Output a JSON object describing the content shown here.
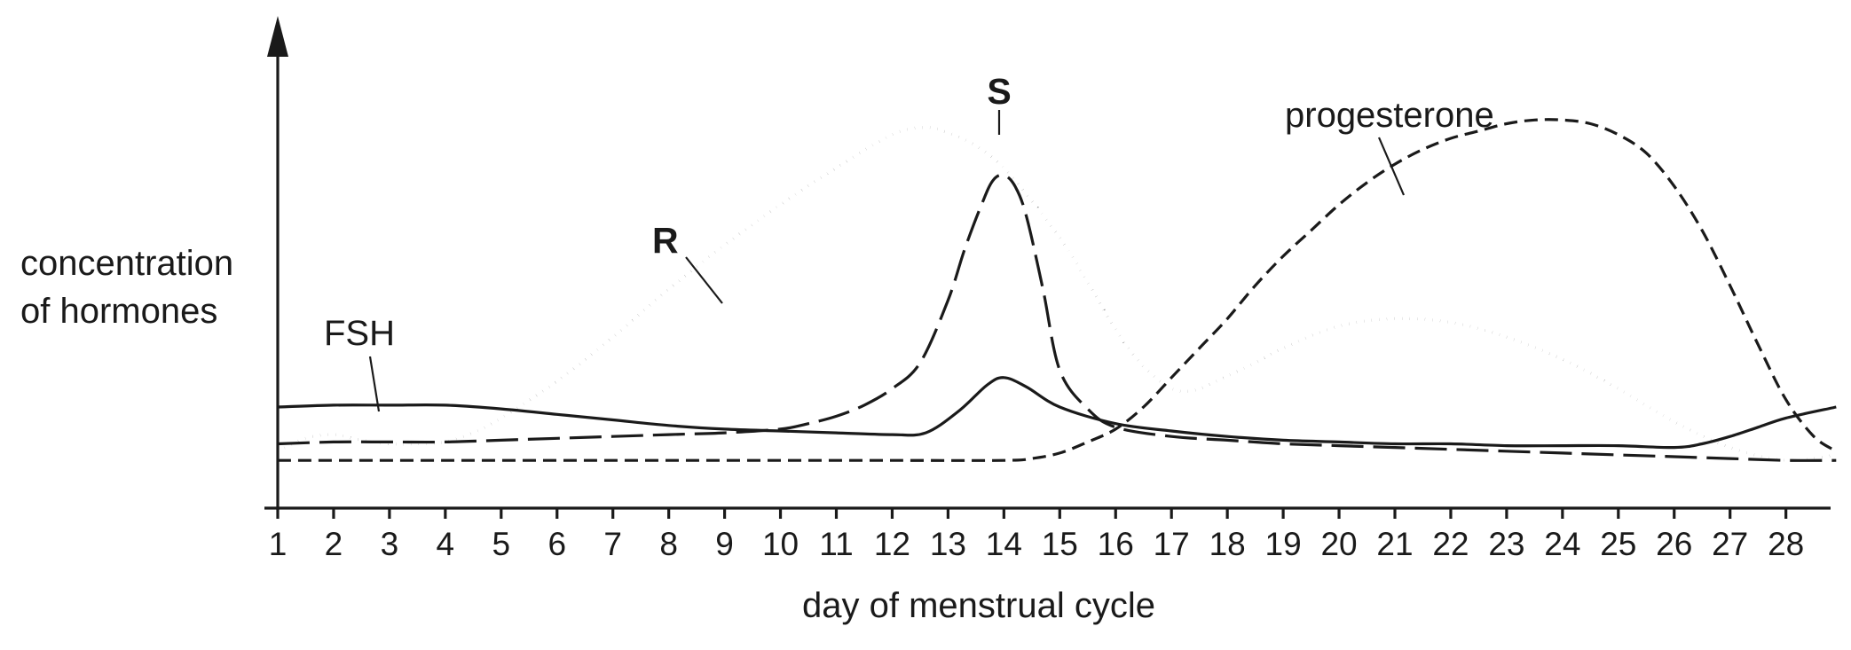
{
  "chart_data": {
    "type": "line",
    "title": "",
    "xlabel": "day of menstrual cycle",
    "ylabel_lines": [
      "concentration",
      "of hormones"
    ],
    "x_ticks": [
      1,
      2,
      3,
      4,
      5,
      6,
      7,
      8,
      9,
      10,
      11,
      12,
      13,
      14,
      15,
      16,
      17,
      18,
      19,
      20,
      21,
      22,
      23,
      24,
      25,
      26,
      27,
      28
    ],
    "xlim": [
      1,
      28.9
    ],
    "ylim": [
      0,
      10
    ],
    "grid": false,
    "legend": "none",
    "series": [
      {
        "name": "FSH",
        "style": "solid",
        "x": [
          1,
          2,
          3,
          4,
          5,
          6,
          7,
          8,
          9,
          10,
          11,
          12,
          12.6,
          13.2,
          13.7,
          14,
          14.4,
          15,
          16,
          17,
          18,
          19,
          20,
          21,
          22,
          23,
          24,
          25,
          26,
          26.5,
          27,
          27.5,
          28,
          28.9
        ],
        "y": [
          2.0,
          2.05,
          2.05,
          2.05,
          1.95,
          1.8,
          1.65,
          1.5,
          1.4,
          1.35,
          1.3,
          1.25,
          1.3,
          1.9,
          2.6,
          2.8,
          2.55,
          2.0,
          1.55,
          1.35,
          1.2,
          1.1,
          1.05,
          1.0,
          1.0,
          0.95,
          0.95,
          0.95,
          0.9,
          1.0,
          1.2,
          1.45,
          1.7,
          2.0
        ]
      },
      {
        "name": "R",
        "style": "dotted",
        "x": [
          1,
          1.5,
          2,
          2.5,
          3,
          3.5,
          4,
          4.5,
          5,
          6,
          7,
          8,
          9,
          10,
          11,
          12,
          12.6,
          13,
          13.5,
          14,
          14.5,
          15,
          15.5,
          16,
          16.5,
          17,
          17.4,
          17.8,
          18.5,
          19,
          20,
          21,
          22,
          23,
          24,
          25,
          26,
          27,
          28,
          28.9
        ],
        "y": [
          0.8,
          1.15,
          1.25,
          1.1,
          1.0,
          1.0,
          1.05,
          1.3,
          1.7,
          2.7,
          3.9,
          5.2,
          6.4,
          7.5,
          8.5,
          9.4,
          9.6,
          9.45,
          9.1,
          8.5,
          7.6,
          6.6,
          5.4,
          4.1,
          3.1,
          2.5,
          2.45,
          2.7,
          3.2,
          3.6,
          4.2,
          4.4,
          4.3,
          3.9,
          3.3,
          2.5,
          1.6,
          0.9,
          0.55,
          0.7
        ]
      },
      {
        "name": "S",
        "style": "long-dash",
        "x": [
          1,
          2,
          3,
          4,
          5,
          6,
          7,
          8,
          9,
          10,
          10.5,
          11,
          11.5,
          12,
          12.5,
          13,
          13.3,
          13.6,
          13.8,
          14,
          14.2,
          14.4,
          14.7,
          15,
          15.5,
          16,
          17,
          18,
          19,
          20,
          21,
          22,
          23,
          24,
          25,
          26,
          27,
          28,
          28.9
        ],
        "y": [
          1.0,
          1.05,
          1.05,
          1.05,
          1.1,
          1.15,
          1.2,
          1.25,
          1.3,
          1.4,
          1.55,
          1.75,
          2.05,
          2.5,
          3.2,
          4.9,
          6.3,
          7.5,
          8.15,
          8.3,
          8.0,
          7.2,
          5.2,
          3.0,
          1.95,
          1.45,
          1.2,
          1.1,
          1.0,
          0.95,
          0.9,
          0.85,
          0.8,
          0.75,
          0.7,
          0.65,
          0.6,
          0.55,
          0.55
        ]
      },
      {
        "name": "progesterone",
        "style": "short-dash",
        "x": [
          1,
          2,
          4,
          6,
          8,
          10,
          12,
          14,
          14.5,
          15,
          15.5,
          16,
          16.5,
          17,
          17.5,
          18,
          18.5,
          19,
          19.5,
          20,
          20.5,
          21,
          21.5,
          22,
          22.5,
          23,
          23.5,
          24,
          24.5,
          25,
          25.5,
          26,
          26.5,
          27,
          27.5,
          28,
          28.5,
          28.9
        ],
        "y": [
          0.55,
          0.55,
          0.55,
          0.55,
          0.55,
          0.55,
          0.55,
          0.55,
          0.6,
          0.75,
          1.05,
          1.4,
          2.0,
          2.8,
          3.6,
          4.4,
          5.3,
          6.1,
          6.8,
          7.5,
          8.1,
          8.6,
          9.0,
          9.3,
          9.5,
          9.7,
          9.8,
          9.8,
          9.7,
          9.4,
          8.9,
          8.0,
          6.8,
          5.3,
          3.7,
          2.2,
          1.2,
          0.8
        ]
      }
    ],
    "annotations": {
      "fsh_label": "FSH",
      "r_label": "R",
      "s_label": "S",
      "progesterone_label": "progesterone"
    }
  }
}
